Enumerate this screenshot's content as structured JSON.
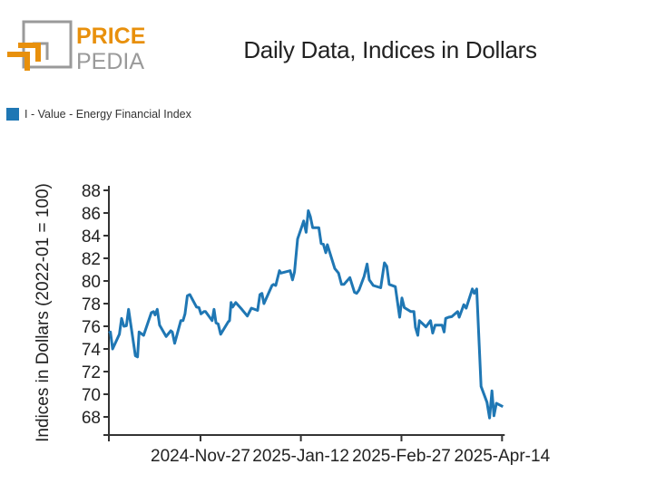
{
  "logo": {
    "line1": "PRICE",
    "line2": "PEDIA",
    "orange": "#e8900c",
    "gray": "#9a9a9a"
  },
  "chart_data": {
    "type": "line",
    "title": "Daily Data, Indices in Dollars",
    "xlabel": "",
    "ylabel": "Indices in Dollars (2022-01 = 100)",
    "x_unit": "days since start of visible range",
    "xlim": [
      0,
      180.2
    ],
    "ylim": [
      66.4,
      88
    ],
    "yticks": [
      68,
      70,
      72,
      74,
      76,
      78,
      80,
      82,
      84,
      86,
      88
    ],
    "xticks": [
      {
        "x": 41.9,
        "label": "2024-Nov-27"
      },
      {
        "x": 87.8,
        "label": "2025-Jan-12"
      },
      {
        "x": 133.8,
        "label": "2025-Feb-27"
      },
      {
        "x": 179.8,
        "label": "2025-Apr-14"
      }
    ],
    "legend": {
      "position": "top-left"
    },
    "series": [
      {
        "name": "I - Value - Energy Financial Index",
        "color": "#1f77b4",
        "x": [
          0,
          0.7,
          1.7,
          4.8,
          5.8,
          6.9,
          8.0,
          9.0,
          12.1,
          13.1,
          13.8,
          15.9,
          19.4,
          20.4,
          21.1,
          22.1,
          23.2,
          26.2,
          28.3,
          29.0,
          30.1,
          32.9,
          33.9,
          34.8,
          35.9,
          37.0,
          40.1,
          41.2,
          42.1,
          43.5,
          44.2,
          47.2,
          48.1,
          49.0,
          50.0,
          51.1,
          54.6,
          55.2,
          55.9,
          56.6,
          58.0,
          60.8,
          63.3,
          65.2,
          68.0,
          69.1,
          70.0,
          70.9,
          74.6,
          75.3,
          76.3,
          78.0,
          78.7,
          82.9,
          84.0,
          84.9,
          86.3,
          88.4,
          89.1,
          90.2,
          91.2,
          92.1,
          93.2,
          96.0,
          97.1,
          98.1,
          99.2,
          99.9,
          103.3,
          105.0,
          106.4,
          107.5,
          110.2,
          112.3,
          113.3,
          114.4,
          116.7,
          118.1,
          119.1,
          120.9,
          124.3,
          126.0,
          127.1,
          128.2,
          131.0,
          133.0,
          134.0,
          135.1,
          138.1,
          139.5,
          140.2,
          141.3,
          142.0,
          145.0,
          147.1,
          148.1,
          149.2,
          152.4,
          153.3,
          154.0,
          155.4,
          156.8,
          159.5,
          160.2,
          162.3,
          163.4,
          166.2,
          167.1,
          168.2,
          170.2,
          172.9,
          174.1,
          175.2,
          176.1,
          177.2,
          180.2
        ],
        "y": [
          75.4,
          75.5,
          74.0,
          75.3,
          76.7,
          76.0,
          76.05,
          77.5,
          73.4,
          73.3,
          75.5,
          75.2,
          77.2,
          77.3,
          77.0,
          77.5,
          76.1,
          75.1,
          75.6,
          75.5,
          74.5,
          76.5,
          76.5,
          77.1,
          78.7,
          78.8,
          77.7,
          77.65,
          77.1,
          77.3,
          77.3,
          76.5,
          77.5,
          76.3,
          76.2,
          75.3,
          76.4,
          76.5,
          78.1,
          77.7,
          78.1,
          77.5,
          76.9,
          77.6,
          77.4,
          78.8,
          78.9,
          78.0,
          79.6,
          79.7,
          79.6,
          80.9,
          80.7,
          80.9,
          80.1,
          80.8,
          83.7,
          84.9,
          85.3,
          84.3,
          86.2,
          85.7,
          84.7,
          84.7,
          83.3,
          83.25,
          82.5,
          83.2,
          81.1,
          80.7,
          79.7,
          79.7,
          80.3,
          79.0,
          78.9,
          79.2,
          80.4,
          81.5,
          80.1,
          79.6,
          79.4,
          81.6,
          81.3,
          79.7,
          79.5,
          76.8,
          78.5,
          77.65,
          77.3,
          77.3,
          75.9,
          75.2,
          76.5,
          75.95,
          76.5,
          75.4,
          76.1,
          76.1,
          75.5,
          76.7,
          76.8,
          76.85,
          77.3,
          76.8,
          77.9,
          77.6,
          79.3,
          78.9,
          79.3,
          70.7,
          69.3,
          67.9,
          70.3,
          68.1,
          69.2,
          68.9
        ]
      }
    ]
  }
}
